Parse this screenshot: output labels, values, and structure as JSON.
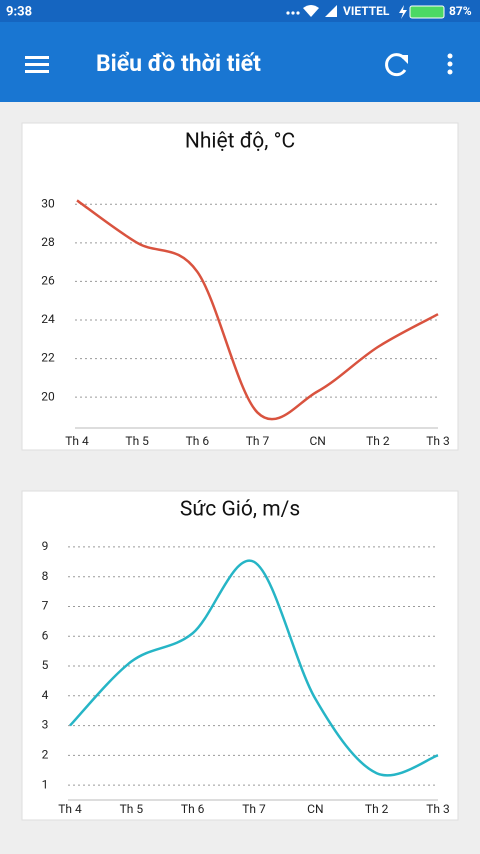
{
  "status_bar": {
    "time": "9:38",
    "carrier": "VIETTEL",
    "battery": "87%"
  },
  "app_bar": {
    "title": "Biểu đồ thời tiết"
  },
  "chart_data": [
    {
      "type": "line",
      "title": "Nhiệt độ, °C",
      "categories": [
        "Th 4",
        "Th 5",
        "Th 6",
        "Th 7",
        "CN",
        "Th 2",
        "Th 3"
      ],
      "values": [
        30.2,
        28.0,
        26.5,
        19.2,
        20.3,
        22.6,
        24.3
      ],
      "color": "#d9533f",
      "ylim": [
        18.4,
        31
      ],
      "yticks": [
        20,
        22,
        24,
        26,
        28,
        30
      ],
      "grid": true
    },
    {
      "type": "line",
      "title": "Sức Gió, m/s",
      "categories": [
        "Th 4",
        "Th 5",
        "Th 6",
        "Th 7",
        "CN",
        "Th 2",
        "Th 3"
      ],
      "values": [
        3.0,
        5.15,
        6.1,
        8.5,
        3.9,
        1.4,
        2.0
      ],
      "color": "#26b5c6",
      "ylim": [
        0.5,
        9.3
      ],
      "yticks": [
        1,
        2,
        3,
        4,
        5,
        6,
        7,
        8,
        9
      ],
      "grid": true
    }
  ]
}
